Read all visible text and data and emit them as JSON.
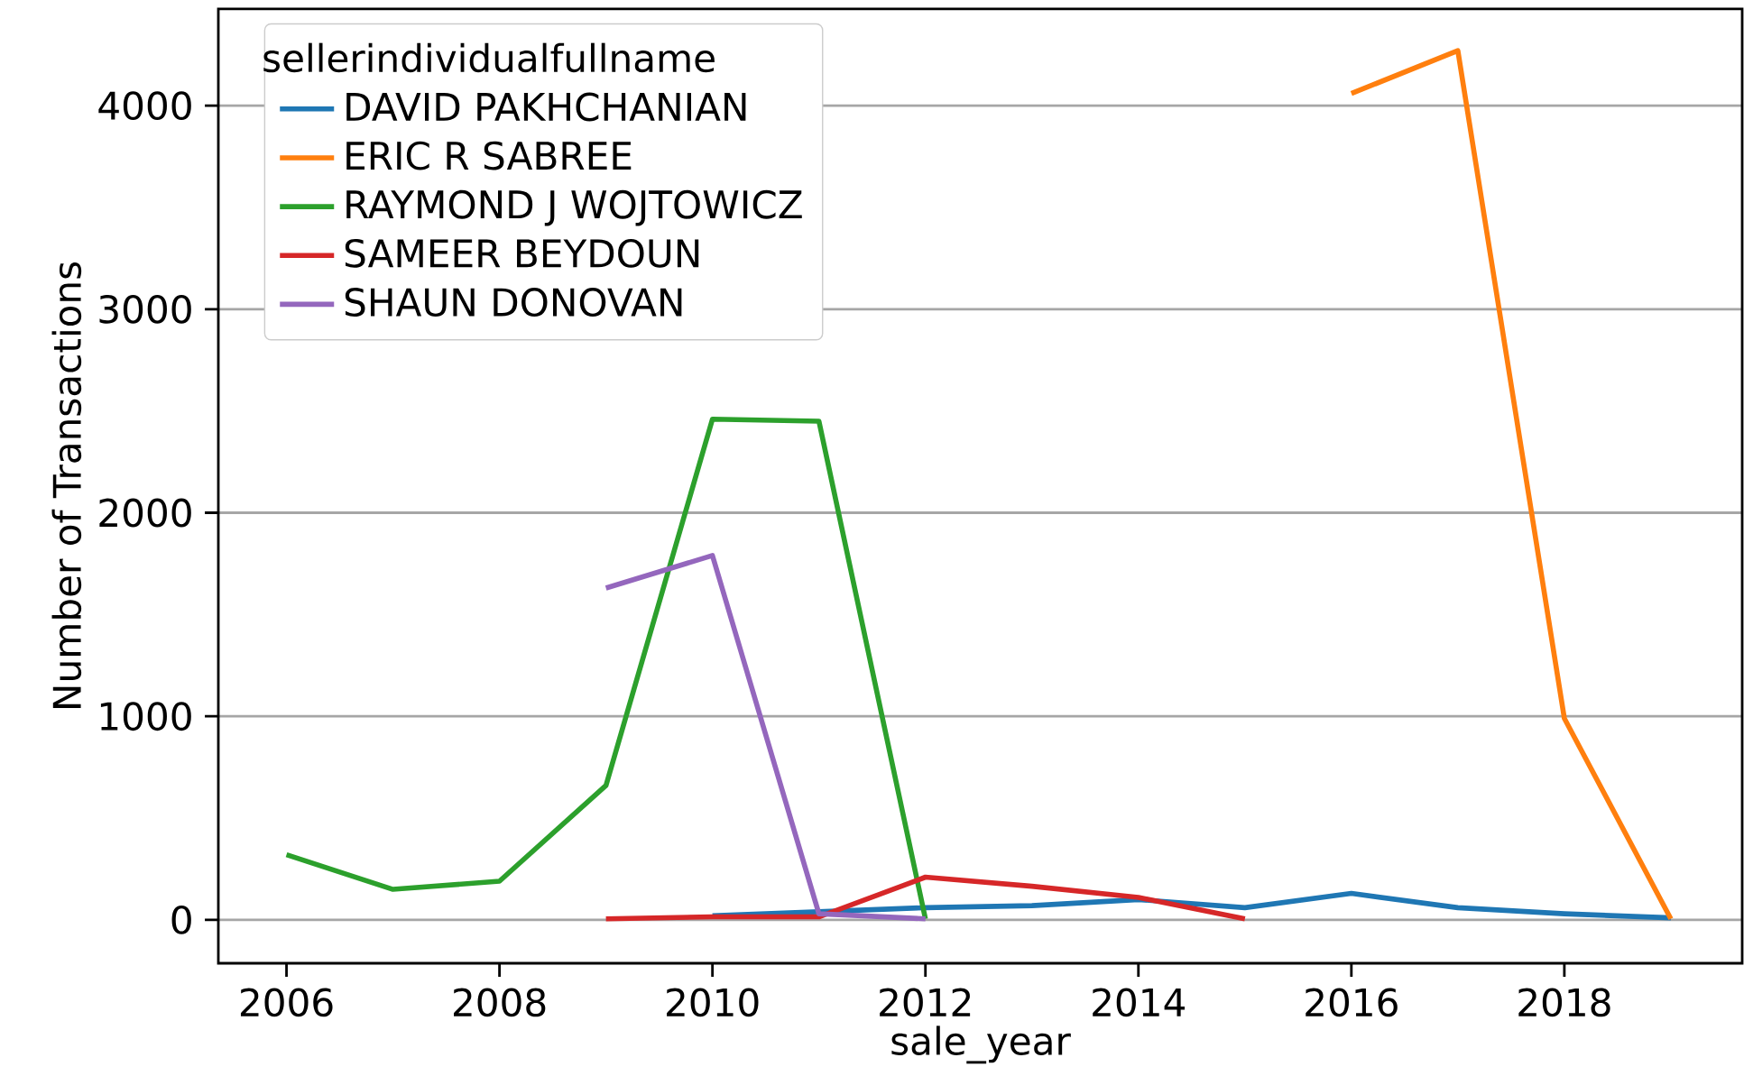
{
  "chart_data": {
    "type": "line",
    "xlabel": "sale_year",
    "ylabel": "Number of Transactions",
    "legend_title": "sellerindividualfullname",
    "xlim": [
      2005.36,
      2019.67
    ],
    "ylim": [
      -213,
      4475
    ],
    "xticks": [
      2006,
      2008,
      2010,
      2012,
      2014,
      2016,
      2018
    ],
    "yticks": [
      0,
      1000,
      2000,
      3000,
      4000
    ],
    "grid": "y",
    "legend": "top left",
    "line_style": "solid",
    "marker": "none",
    "series": [
      {
        "name": "DAVID PAKHCHANIAN",
        "color": "#1f77b4",
        "x": [
          2010,
          2011,
          2012,
          2013,
          2014,
          2015,
          2016,
          2017,
          2018,
          2019
        ],
        "values": [
          20,
          40,
          60,
          70,
          100,
          60,
          130,
          60,
          30,
          10
        ]
      },
      {
        "name": "ERIC R SABREE",
        "color": "#ff7f0e",
        "x": [
          2016,
          2017,
          2018,
          2019
        ],
        "values": [
          4060,
          4270,
          990,
          5
        ]
      },
      {
        "name": "RAYMOND J WOJTOWICZ",
        "color": "#2ca02c",
        "x": [
          2006,
          2007,
          2008,
          2009,
          2010,
          2011,
          2012
        ],
        "values": [
          320,
          150,
          190,
          660,
          2460,
          2450,
          5
        ]
      },
      {
        "name": "SAMEER BEYDOUN",
        "color": "#d62728",
        "x": [
          2009,
          2010,
          2011,
          2012,
          2013,
          2014,
          2015
        ],
        "values": [
          5,
          15,
          15,
          210,
          165,
          110,
          5
        ]
      },
      {
        "name": "SHAUN DONOVAN",
        "color": "#9467bd",
        "x": [
          2009,
          2010,
          2011,
          2012
        ],
        "values": [
          1630,
          1790,
          30,
          5
        ]
      }
    ]
  }
}
